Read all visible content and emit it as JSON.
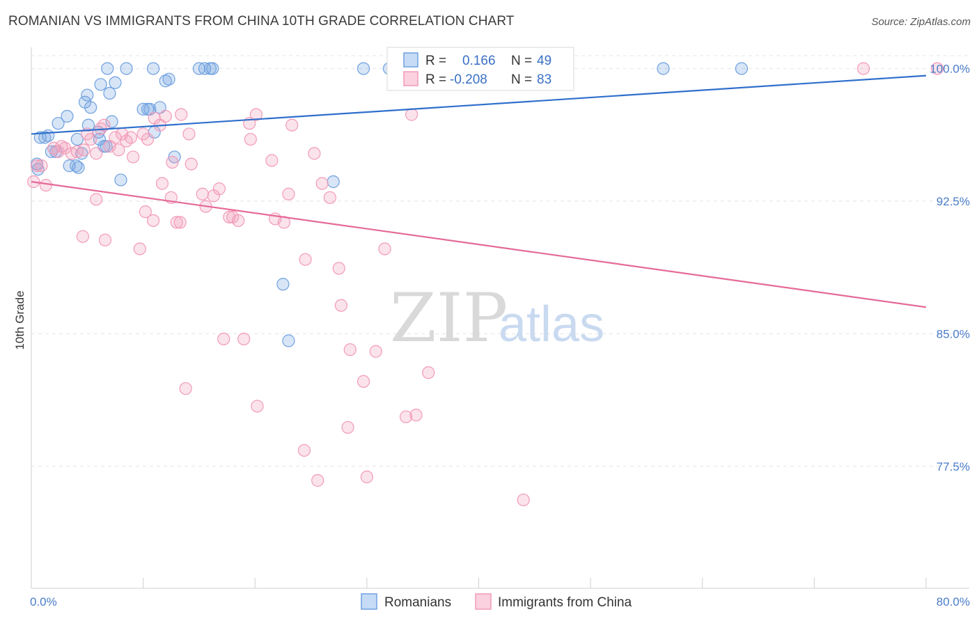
{
  "title": "ROMANIAN VS IMMIGRANTS FROM CHINA 10TH GRADE CORRELATION CHART",
  "source": "Source: ZipAtlas.com",
  "chart_data": {
    "type": "scatter",
    "xlabel": "",
    "ylabel": "10th Grade",
    "xlim": [
      0,
      80
    ],
    "ylim": [
      70.6,
      101.2
    ],
    "x_tick_labels": [
      {
        "value": 0,
        "label": "0.0%"
      },
      {
        "value": 80,
        "label": "80.0%"
      }
    ],
    "y_tick_labels": [
      {
        "value": 100,
        "label": "100.0%"
      },
      {
        "value": 92.5,
        "label": "92.5%"
      },
      {
        "value": 85,
        "label": "85.0%"
      },
      {
        "value": 77.5,
        "label": "77.5%"
      }
    ],
    "grid": true,
    "legend_position": "top-center",
    "watermark": {
      "zip": "ZIP",
      "atlas": "atlas"
    },
    "stats_legend": [
      {
        "r_label": "R =",
        "r_value": "0.166",
        "n_label": "N =",
        "n_value": "49",
        "color": "#6fa0e0"
      },
      {
        "r_label": "R =",
        "r_value": "-0.208",
        "n_label": "N =",
        "n_value": "83",
        "color": "#f29ab8"
      }
    ],
    "series": [
      {
        "name": "Romanians",
        "color": "#6fa0e0",
        "trend": {
          "x": [
            0,
            80
          ],
          "y": [
            96.3,
            99.6
          ],
          "color": "#2f6fcc"
        },
        "points": [
          [
            0.5,
            94.6
          ],
          [
            0.6,
            94.3
          ],
          [
            0.8,
            96.1
          ],
          [
            1.2,
            96.1
          ],
          [
            1.5,
            96.2
          ],
          [
            1.8,
            95.3
          ],
          [
            2.2,
            95.3
          ],
          [
            2.4,
            96.9
          ],
          [
            3.2,
            97.3
          ],
          [
            3.4,
            94.5
          ],
          [
            4.0,
            94.5
          ],
          [
            4.1,
            96.0
          ],
          [
            4.5,
            95.2
          ],
          [
            4.2,
            94.4
          ],
          [
            4.8,
            98.1
          ],
          [
            5.0,
            98.5
          ],
          [
            5.1,
            96.8
          ],
          [
            5.3,
            97.8
          ],
          [
            6.0,
            96.4
          ],
          [
            6.1,
            96.0
          ],
          [
            6.2,
            99.1
          ],
          [
            6.5,
            95.6
          ],
          [
            6.7,
            95.6
          ],
          [
            7.0,
            98.6
          ],
          [
            7.2,
            97.0
          ],
          [
            7.5,
            99.2
          ],
          [
            8.0,
            93.7
          ],
          [
            8.5,
            100.0
          ],
          [
            10.0,
            97.7
          ],
          [
            10.4,
            97.7
          ],
          [
            10.6,
            97.7
          ],
          [
            10.9,
            100.0
          ],
          [
            11.0,
            96.4
          ],
          [
            11.5,
            97.8
          ],
          [
            12.0,
            99.3
          ],
          [
            12.3,
            99.4
          ],
          [
            12.8,
            95.0
          ],
          [
            15.0,
            100.0
          ],
          [
            15.5,
            100.0
          ],
          [
            16.0,
            100.0
          ],
          [
            16.2,
            100.0
          ],
          [
            22.5,
            87.8
          ],
          [
            23.0,
            84.6
          ],
          [
            27.0,
            93.6
          ],
          [
            29.7,
            100.0
          ],
          [
            32.0,
            100.0
          ],
          [
            56.5,
            100.0
          ],
          [
            63.5,
            100.0
          ],
          [
            6.8,
            100.0
          ]
        ]
      },
      {
        "name": "Immigrants from China",
        "color": "#f29ab8",
        "trend": {
          "x": [
            0,
            80
          ],
          "y": [
            93.6,
            86.5
          ],
          "color": "#e46a98"
        },
        "points": [
          [
            0.2,
            93.6
          ],
          [
            0.5,
            94.5
          ],
          [
            0.9,
            94.5
          ],
          [
            1.3,
            93.4
          ],
          [
            2.0,
            95.5
          ],
          [
            2.4,
            95.3
          ],
          [
            2.7,
            95.6
          ],
          [
            3.0,
            95.5
          ],
          [
            3.6,
            95.2
          ],
          [
            4.1,
            95.3
          ],
          [
            4.7,
            95.4
          ],
          [
            5.0,
            96.3
          ],
          [
            5.3,
            96.0
          ],
          [
            5.8,
            95.2
          ],
          [
            6.2,
            96.6
          ],
          [
            6.5,
            96.8
          ],
          [
            7.0,
            95.6
          ],
          [
            7.5,
            96.1
          ],
          [
            7.8,
            95.4
          ],
          [
            8.1,
            96.3
          ],
          [
            8.5,
            95.9
          ],
          [
            8.9,
            96.1
          ],
          [
            9.1,
            95.0
          ],
          [
            10.0,
            96.3
          ],
          [
            10.4,
            96.0
          ],
          [
            11.0,
            97.2
          ],
          [
            11.5,
            96.8
          ],
          [
            12.0,
            97.3
          ],
          [
            12.6,
            94.7
          ],
          [
            13.4,
            97.4
          ],
          [
            14.1,
            96.3
          ],
          [
            14.3,
            94.6
          ],
          [
            5.8,
            92.6
          ],
          [
            4.6,
            90.5
          ],
          [
            6.6,
            90.3
          ],
          [
            9.7,
            89.8
          ],
          [
            10.2,
            91.9
          ],
          [
            10.9,
            91.4
          ],
          [
            11.7,
            93.5
          ],
          [
            12.5,
            92.7
          ],
          [
            13.0,
            91.3
          ],
          [
            13.3,
            91.3
          ],
          [
            15.3,
            92.9
          ],
          [
            15.6,
            92.2
          ],
          [
            16.3,
            92.8
          ],
          [
            16.8,
            93.2
          ],
          [
            17.7,
            91.6
          ],
          [
            18.0,
            91.6
          ],
          [
            18.5,
            91.4
          ],
          [
            19.5,
            96.9
          ],
          [
            19.6,
            96.0
          ],
          [
            20.1,
            97.4
          ],
          [
            21.5,
            94.8
          ],
          [
            21.8,
            91.5
          ],
          [
            22.6,
            91.3
          ],
          [
            23.0,
            92.9
          ],
          [
            23.3,
            96.8
          ],
          [
            24.5,
            89.2
          ],
          [
            25.3,
            95.2
          ],
          [
            26.0,
            93.5
          ],
          [
            26.7,
            92.7
          ],
          [
            27.5,
            88.7
          ],
          [
            27.7,
            86.6
          ],
          [
            28.5,
            84.1
          ],
          [
            29.7,
            82.3
          ],
          [
            30.8,
            84.0
          ],
          [
            31.6,
            89.8
          ],
          [
            35.5,
            82.8
          ],
          [
            17.2,
            84.7
          ],
          [
            19.0,
            84.7
          ],
          [
            13.8,
            81.9
          ],
          [
            20.2,
            80.9
          ],
          [
            24.4,
            78.4
          ],
          [
            25.6,
            76.7
          ],
          [
            28.3,
            79.7
          ],
          [
            30.0,
            76.9
          ],
          [
            33.5,
            80.3
          ],
          [
            34.4,
            80.4
          ],
          [
            44.0,
            75.6
          ],
          [
            34.0,
            97.4
          ],
          [
            40.0,
            100.0
          ],
          [
            74.4,
            100.0
          ],
          [
            81.0,
            100.0
          ]
        ]
      }
    ]
  },
  "bottom_legend": [
    {
      "label": "Romanians",
      "color": "#6fa0e0"
    },
    {
      "label": "Immigrants from China",
      "color": "#f29ab8"
    }
  ]
}
